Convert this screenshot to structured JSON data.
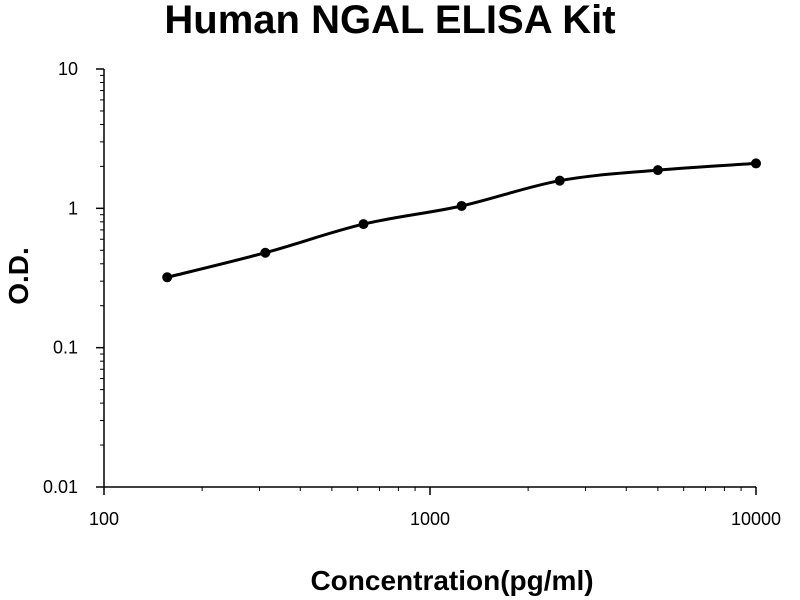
{
  "chart_data": {
    "type": "scatter",
    "title": "Human NGAL ELISA Kit",
    "xlabel": "Concentration(pg/ml)",
    "ylabel": "O.D.",
    "x_scale": "log",
    "y_scale": "log",
    "xlim": [
      100,
      10000
    ],
    "ylim": [
      0.01,
      10
    ],
    "x_ticks": [
      "100",
      "1000",
      "10000"
    ],
    "y_ticks": [
      "0.01",
      "0.1",
      "1",
      "10"
    ],
    "grid": false,
    "legend": "none",
    "series": [
      {
        "x": [
          156.25,
          312.5,
          625,
          1250,
          2500,
          5000,
          10000
        ],
        "y": [
          0.32,
          0.48,
          0.77,
          1.04,
          1.58,
          1.88,
          2.1
        ]
      }
    ],
    "colors": {
      "line": "#000000",
      "marker": "#000000",
      "axis": "#000000"
    }
  }
}
